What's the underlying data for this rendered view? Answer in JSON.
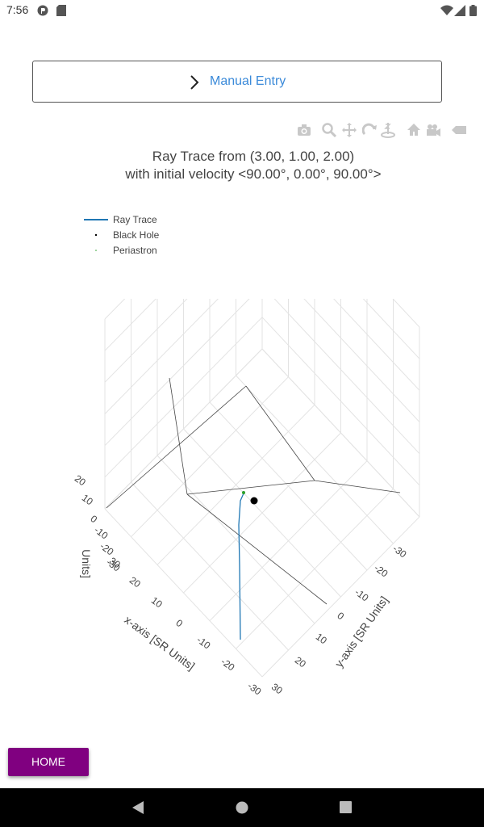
{
  "status_bar": {
    "time": "7:56"
  },
  "manual_entry": {
    "label": "Manual Entry"
  },
  "plot": {
    "title_line1": "Ray Trace from (3.00, 1.00, 2.00)",
    "title_line2": "with initial velocity <90.00°, 0.00°, 90.00°>",
    "legend": [
      {
        "name": "Ray Trace",
        "color": "#1f77b4"
      },
      {
        "name": "Black Hole",
        "color": "#000000"
      },
      {
        "name": "Periastron",
        "color": "#2ca02c"
      }
    ],
    "x_axis_label": "x-axis [SR Units]",
    "y_axis_label": "y-axis [SR Units]",
    "z_axis_label_partial": "Units]",
    "x_ticks": [
      "30",
      "20",
      "10",
      "0",
      "-10",
      "-20",
      "-30"
    ],
    "y_ticks": [
      "-30",
      "-20",
      "-10",
      "0",
      "10",
      "20",
      "30"
    ],
    "z_ticks": [
      "20",
      "10",
      "0",
      "-10",
      "-20",
      "-30"
    ]
  },
  "home_button": {
    "label": "HOME"
  }
}
